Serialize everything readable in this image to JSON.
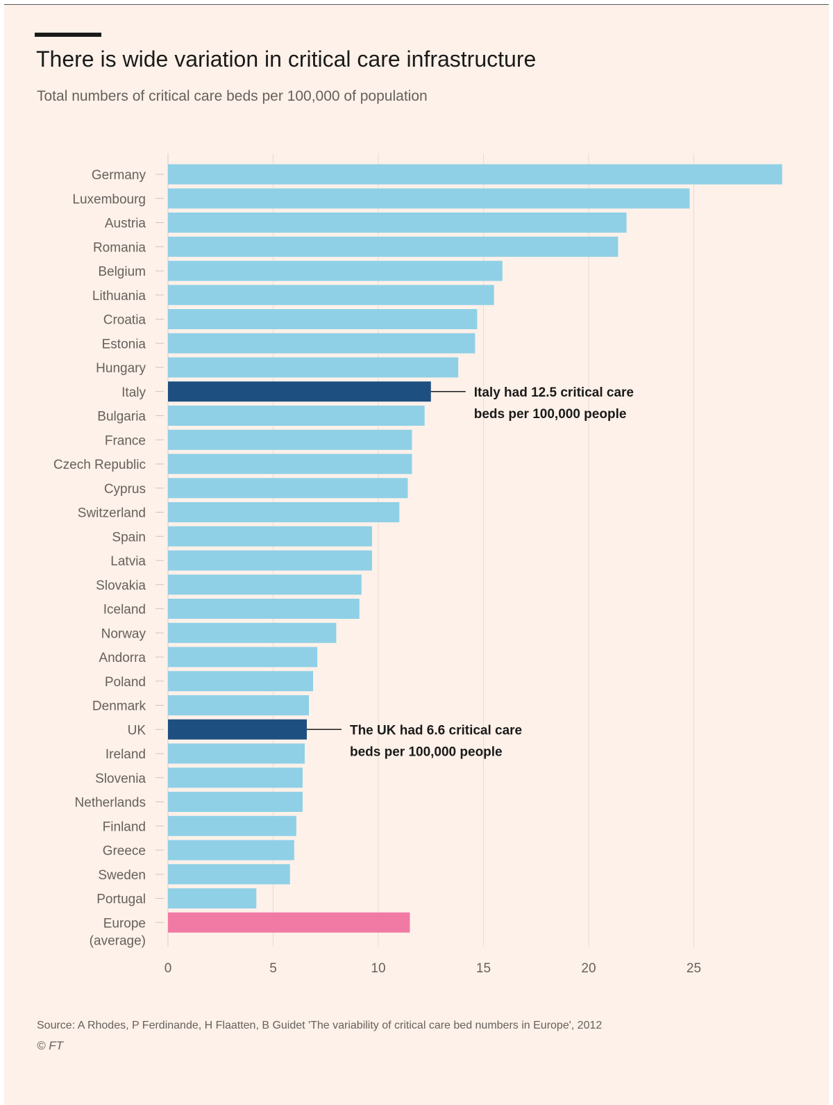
{
  "colors": {
    "background": "#fdf1e9",
    "bar": "#8fd0e6",
    "highlight": "#1d4f80",
    "average": "#f17aa5",
    "grid": "#e6dcd4",
    "text": "#1a1a1a",
    "muted": "#66605c"
  },
  "header": {
    "title": "There is wide variation in critical care infrastructure",
    "subtitle": "Total numbers of critical care beds per 100,000 of population"
  },
  "footer": {
    "source": "Source: A Rhodes, P Ferdinande, H Flaatten, B Guidet 'The variability of critical care bed numbers in Europe', 2012",
    "credit": "© FT"
  },
  "chart_data": {
    "type": "bar",
    "orientation": "horizontal",
    "title": "There is wide variation in critical care infrastructure",
    "subtitle": "Total numbers of critical care beds per 100,000 of population",
    "xlabel": "",
    "ylabel": "",
    "xlim": [
      0,
      29.2
    ],
    "xticks": [
      0,
      5,
      10,
      15,
      20,
      25
    ],
    "grid": true,
    "categories": [
      "Germany",
      "Luxembourg",
      "Austria",
      "Romania",
      "Belgium",
      "Lithuania",
      "Croatia",
      "Estonia",
      "Hungary",
      "Italy",
      "Bulgaria",
      "France",
      "Czech Republic",
      "Cyprus",
      "Switzerland",
      "Spain",
      "Latvia",
      "Slovakia",
      "Iceland",
      "Norway",
      "Andorra",
      "Poland",
      "Denmark",
      "UK",
      "Ireland",
      "Slovenia",
      "Netherlands",
      "Finland",
      "Greece",
      "Sweden",
      "Portugal",
      [
        "Europe",
        "(average)"
      ]
    ],
    "values": [
      29.2,
      24.8,
      21.8,
      21.4,
      15.9,
      15.5,
      14.7,
      14.6,
      13.8,
      12.5,
      12.2,
      11.6,
      11.6,
      11.4,
      11.0,
      9.7,
      9.7,
      9.2,
      9.1,
      8.0,
      7.1,
      6.9,
      6.7,
      6.6,
      6.5,
      6.4,
      6.4,
      6.1,
      6.0,
      5.8,
      4.2,
      11.5
    ],
    "highlight": [
      "Italy",
      "UK"
    ],
    "average_category": "Europe (average)",
    "annotations": [
      {
        "category": "Italy",
        "lines": [
          "Italy had 12.5 critical care",
          "beds per 100,000 people"
        ]
      },
      {
        "category": "UK",
        "lines": [
          "The UK had 6.6 critical care",
          "beds per 100,000 people"
        ]
      }
    ]
  }
}
